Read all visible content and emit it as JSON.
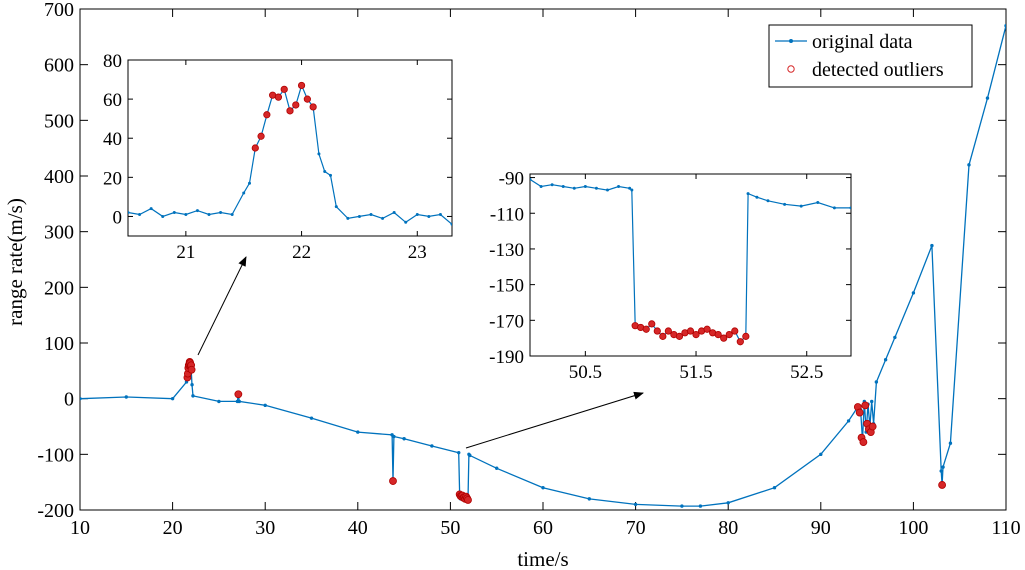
{
  "colors": {
    "series": "#0072bd",
    "outlier": "#d62728",
    "axis": "#000000",
    "background": "#ffffff"
  },
  "chart_data": [
    {
      "type": "scatter",
      "name": "main",
      "xlabel": "time/s",
      "ylabel": "range rate(m/s)",
      "xlim": [
        10,
        110
      ],
      "ylim": [
        -200,
        700
      ],
      "xticks": [
        "10",
        "20",
        "30",
        "40",
        "50",
        "60",
        "70",
        "80",
        "90",
        "100",
        "110"
      ],
      "yticks": [
        "-200",
        "-100",
        "0",
        "100",
        "200",
        "300",
        "400",
        "500",
        "600",
        "700"
      ],
      "legend": {
        "placement": "top-right",
        "entries": [
          "original data",
          "detected outliers"
        ]
      },
      "grid": false,
      "series": [
        {
          "name": "original data",
          "style": "line-with-dots",
          "x": [
            10,
            15,
            20,
            21.5,
            21.6,
            21.7,
            21.8,
            21.9,
            22,
            22.1,
            22.2,
            25,
            27,
            27.1,
            27.2,
            30,
            35,
            40,
            43.7,
            43.8,
            43.9,
            45,
            48,
            50.9,
            51,
            51.1,
            51.9,
            52,
            52.1,
            55,
            60,
            65,
            70,
            75,
            77,
            80,
            85,
            90,
            93,
            94,
            94.3,
            94.5,
            94.7,
            94.9,
            95.1,
            95.3,
            95.5,
            95.7,
            96,
            97,
            98,
            100,
            102,
            103,
            103.1,
            103.2,
            104,
            106,
            108,
            110
          ],
          "y": [
            0,
            3,
            0,
            30,
            55,
            65,
            60,
            62,
            55,
            25,
            5,
            -5,
            -5,
            8,
            -5,
            -12,
            -35,
            -60,
            -65,
            -148,
            -68,
            -72,
            -85,
            -97,
            -175,
            -180,
            -180,
            -100,
            -102,
            -125,
            -160,
            -180,
            -190,
            -193,
            -193,
            -187,
            -160,
            -100,
            -40,
            -15,
            -20,
            -75,
            -5,
            -60,
            -10,
            -50,
            -5,
            -45,
            30,
            70,
            110,
            190,
            275,
            -130,
            -155,
            -123,
            -80,
            420,
            540,
            670
          ]
        },
        {
          "name": "detected outliers",
          "style": "circles",
          "x": [
            21.6,
            21.65,
            21.7,
            21.75,
            21.8,
            21.85,
            21.9,
            21.95,
            22,
            22.05,
            27.1,
            43.8,
            51.0,
            51.1,
            51.2,
            51.3,
            51.4,
            51.5,
            51.6,
            51.7,
            51.8,
            51.9,
            94.0,
            94.2,
            94.4,
            94.6,
            94.8,
            95.0,
            95.2,
            95.4,
            95.6,
            103.1
          ],
          "y": [
            38,
            45,
            55,
            60,
            62,
            66,
            64,
            58,
            60,
            52,
            8,
            -148,
            -172,
            -175,
            -176,
            -174,
            -178,
            -177,
            -180,
            -176,
            -179,
            -182,
            -15,
            -25,
            -70,
            -78,
            -12,
            -45,
            -55,
            -60,
            -50,
            -155
          ]
        }
      ]
    },
    {
      "type": "line",
      "name": "inset-1",
      "xlim": [
        20.5,
        23.3
      ],
      "ylim": [
        -10,
        80
      ],
      "xticks": [
        "21",
        "22",
        "23"
      ],
      "yticks": [
        "0",
        "20",
        "40",
        "60",
        "80"
      ],
      "series": [
        {
          "name": "original data",
          "x": [
            20.5,
            20.6,
            20.7,
            20.8,
            20.9,
            21,
            21.1,
            21.2,
            21.3,
            21.4,
            21.5,
            21.55,
            21.6,
            21.65,
            21.7,
            21.75,
            21.8,
            21.85,
            21.9,
            21.95,
            22,
            22.05,
            22.1,
            22.15,
            22.2,
            22.25,
            22.3,
            22.4,
            22.5,
            22.6,
            22.7,
            22.8,
            22.9,
            23,
            23.1,
            23.2,
            23.3
          ],
          "y": [
            2,
            1,
            4,
            0,
            2,
            1,
            3,
            1,
            2,
            1,
            12,
            17,
            35,
            41,
            52,
            62,
            61,
            65,
            54,
            57,
            67,
            60,
            56,
            32,
            23,
            21,
            5,
            -1,
            0,
            1,
            -1,
            2,
            -3,
            1,
            0,
            1,
            -4
          ]
        },
        {
          "name": "detected outliers",
          "x": [
            21.6,
            21.65,
            21.7,
            21.75,
            21.8,
            21.85,
            21.9,
            21.95,
            22,
            22.05,
            22.1
          ],
          "y": [
            35,
            41,
            52,
            62,
            61,
            65,
            54,
            57,
            67,
            60,
            56
          ]
        }
      ]
    },
    {
      "type": "line",
      "name": "inset-2",
      "xlim": [
        50,
        52.9
      ],
      "ylim": [
        -190,
        -88
      ],
      "xticks": [
        "50.5",
        "51.5",
        "52.5"
      ],
      "yticks": [
        "-90",
        "-110",
        "-130",
        "-150",
        "-170",
        "-190"
      ],
      "series": [
        {
          "name": "original data",
          "x": [
            50,
            50.1,
            50.2,
            50.3,
            50.4,
            50.5,
            50.6,
            50.7,
            50.8,
            50.9,
            50.92,
            50.95,
            51,
            51.05,
            51.1,
            51.15,
            51.2,
            51.25,
            51.3,
            51.35,
            51.4,
            51.45,
            51.5,
            51.55,
            51.6,
            51.65,
            51.7,
            51.75,
            51.8,
            51.85,
            51.9,
            51.95,
            51.97,
            52.05,
            52.15,
            52.3,
            52.45,
            52.6,
            52.75,
            52.9
          ],
          "y": [
            -91,
            -95,
            -94,
            -95,
            -96,
            -95,
            -96,
            -97,
            -95,
            -96,
            -97,
            -173,
            -174,
            -175,
            -172,
            -176,
            -179,
            -176,
            -178,
            -179,
            -177,
            -176,
            -178,
            -176,
            -175,
            -177,
            -178,
            -180,
            -178,
            -176,
            -182,
            -179,
            -99,
            -101,
            -103,
            -105,
            -106,
            -104,
            -107,
            -107
          ]
        },
        {
          "name": "detected outliers",
          "x": [
            50.95,
            51,
            51.05,
            51.1,
            51.15,
            51.2,
            51.25,
            51.3,
            51.35,
            51.4,
            51.45,
            51.5,
            51.55,
            51.6,
            51.65,
            51.7,
            51.75,
            51.8,
            51.85,
            51.9,
            51.95
          ],
          "y": [
            -173,
            -174,
            -175,
            -172,
            -176,
            -179,
            -176,
            -178,
            -179,
            -177,
            -176,
            -178,
            -176,
            -175,
            -177,
            -178,
            -180,
            -178,
            -176,
            -182,
            -179
          ]
        }
      ]
    }
  ]
}
